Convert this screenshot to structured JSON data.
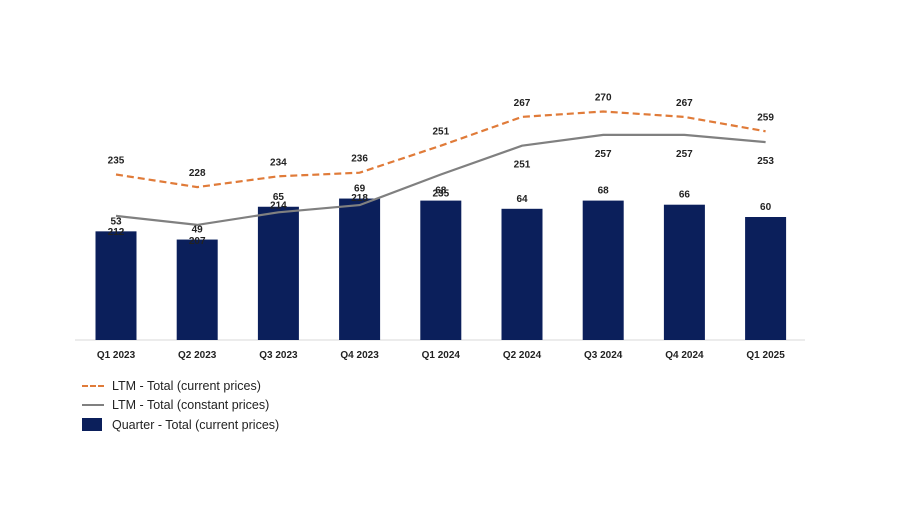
{
  "chart_data": {
    "type": "bar",
    "categories": [
      "Q1 2023",
      "Q2 2023",
      "Q3 2023",
      "Q4 2023",
      "Q1 2024",
      "Q2 2024",
      "Q3 2024",
      "Q4 2024",
      "Q1 2025"
    ],
    "series": [
      {
        "name": "LTM - Total  (current prices)",
        "type": "line",
        "style": "dashed",
        "color": "#E07B39",
        "values": [
          235,
          228,
          234,
          236,
          251,
          267,
          270,
          267,
          259
        ]
      },
      {
        "name": "LTM - Total  (constant prices)",
        "type": "line",
        "style": "solid",
        "color": "#808080",
        "values": [
          212,
          207,
          214,
          218,
          235,
          251,
          257,
          257,
          253
        ]
      },
      {
        "name": "Quarter - Total  (current prices)",
        "type": "bar",
        "color": "#0B1F5B",
        "values": [
          53,
          49,
          65,
          69,
          68,
          64,
          68,
          66,
          60
        ]
      }
    ],
    "legend_position": "bottom-left",
    "grid": false
  }
}
